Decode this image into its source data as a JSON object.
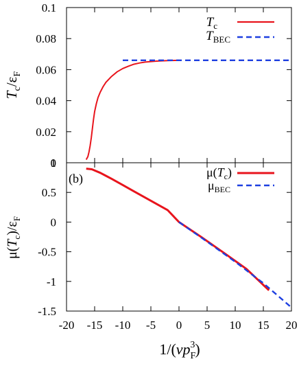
{
  "chart_data": [
    {
      "type": "line",
      "panel_label": "",
      "xlim": [
        -20,
        20
      ],
      "ylim": [
        0,
        0.1
      ],
      "yticks": [
        0,
        0.02,
        0.04,
        0.06,
        0.08,
        0.1
      ],
      "ytick_labels": [
        "0",
        "0.02",
        "0.04",
        "0.06",
        "0.08",
        "0.1"
      ],
      "ylabel": "Tc/εF",
      "legend_position": "top-right",
      "series": [
        {
          "name": "Tc",
          "color": "#e8141c",
          "dash": "solid",
          "points": [
            [
              -16.5,
              0.002
            ],
            [
              -16.2,
              0.004
            ],
            [
              -16.0,
              0.007
            ],
            [
              -15.8,
              0.011
            ],
            [
              -15.6,
              0.016
            ],
            [
              -15.4,
              0.022
            ],
            [
              -15.2,
              0.028
            ],
            [
              -15.0,
              0.033
            ],
            [
              -14.7,
              0.038
            ],
            [
              -14.4,
              0.042
            ],
            [
              -14.0,
              0.0455
            ],
            [
              -13.5,
              0.049
            ],
            [
              -13.0,
              0.0518
            ],
            [
              -12.0,
              0.0556
            ],
            [
              -11.0,
              0.0586
            ],
            [
              -10.0,
              0.0607
            ],
            [
              -9.0,
              0.0622
            ],
            [
              -8.0,
              0.0635
            ],
            [
              -7.0,
              0.0643
            ],
            [
              -6.0,
              0.0649
            ],
            [
              -4.0,
              0.0655
            ],
            [
              -2.0,
              0.0658
            ],
            [
              0.0,
              0.066
            ]
          ]
        },
        {
          "name": "TBEC",
          "color": "#1d3fe0",
          "dash": "dashed",
          "points": [
            [
              -10.0,
              0.066
            ],
            [
              20.0,
              0.066
            ]
          ]
        }
      ]
    },
    {
      "type": "line",
      "panel_label": "(b)",
      "xlim": [
        -20,
        20
      ],
      "ylim": [
        -1.5,
        1
      ],
      "xticks": [
        -20,
        -15,
        -10,
        -5,
        0,
        5,
        10,
        15,
        20
      ],
      "xtick_labels": [
        "-20",
        "-15",
        "-10",
        "-5",
        "0",
        "5",
        "10",
        "15",
        "20"
      ],
      "yticks": [
        -1.5,
        -1,
        -0.5,
        0,
        0.5,
        1
      ],
      "ytick_labels": [
        "-1.5",
        "-1",
        "-0.5",
        "0",
        "0.5",
        "1"
      ],
      "xlabel": "1/(vpF3)",
      "ylabel": "μ(Tc)/εF",
      "legend_position": "top-right",
      "series": [
        {
          "name": "μ(Tc)",
          "color": "#e8141c",
          "dash": "solid",
          "points": [
            [
              -16.5,
              0.9
            ],
            [
              -15.5,
              0.89
            ],
            [
              -15.0,
              0.87
            ],
            [
              -14.0,
              0.83
            ],
            [
              -13.0,
              0.78
            ],
            [
              -12.0,
              0.73
            ],
            [
              -10.0,
              0.625
            ],
            [
              -8.0,
              0.518
            ],
            [
              -6.0,
              0.412
            ],
            [
              -4.0,
              0.306
            ],
            [
              -2.0,
              0.2
            ],
            [
              0.0,
              0.0
            ],
            [
              4.0,
              -0.255
            ],
            [
              8.0,
              -0.52
            ],
            [
              12.0,
              -0.79
            ],
            [
              16.0,
              -1.15
            ]
          ]
        },
        {
          "name": "μBEC",
          "color": "#1d3fe0",
          "dash": "dashed",
          "points": [
            [
              0.0,
              0.0
            ],
            [
              5.0,
              -0.33
            ],
            [
              10.0,
              -0.67
            ],
            [
              15.0,
              -1.03
            ],
            [
              20.0,
              -1.44
            ]
          ]
        }
      ]
    }
  ]
}
